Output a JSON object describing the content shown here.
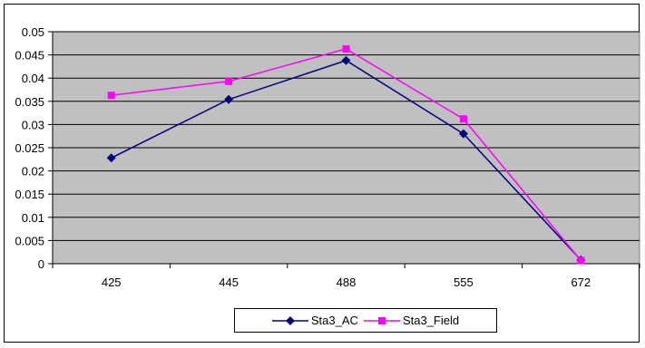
{
  "chart_data": {
    "type": "line",
    "title": "",
    "xlabel": "",
    "ylabel": "",
    "categories": [
      "425",
      "445",
      "488",
      "555",
      "672"
    ],
    "ylim": [
      0,
      0.05
    ],
    "yticks": [
      "0",
      "0.005",
      "0.01",
      "0.015",
      "0.02",
      "0.025",
      "0.03",
      "0.035",
      "0.04",
      "0.045",
      "0.05"
    ],
    "grid": true,
    "legend_position": "bottom",
    "plot_background": "#c0c0c0",
    "series": [
      {
        "name": "Sta3_AC",
        "values": [
          0.0228,
          0.0354,
          0.0438,
          0.028,
          0.0008
        ],
        "color": "#000080",
        "marker": "diamond"
      },
      {
        "name": "Sta3_Field",
        "values": [
          0.0363,
          0.0393,
          0.0463,
          0.0312,
          0.0007
        ],
        "color": "#ff00ff",
        "marker": "square"
      }
    ]
  }
}
